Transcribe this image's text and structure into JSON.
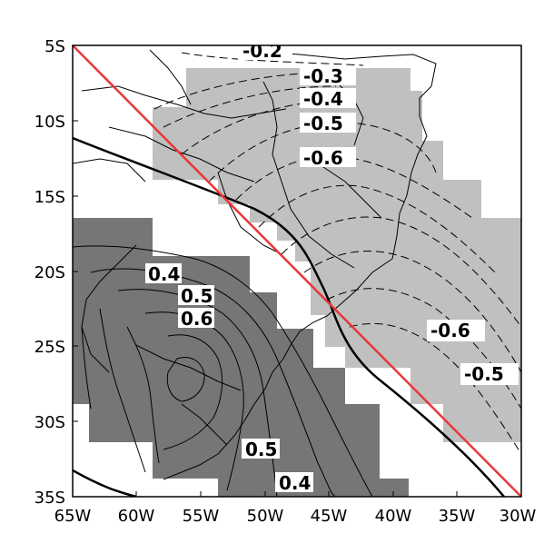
{
  "map": {
    "y_axis_labels": [
      "5S",
      "10S",
      "15S",
      "20S",
      "25S",
      "30S",
      "35S"
    ],
    "x_axis_labels": [
      "65W",
      "60W",
      "55W",
      "50W",
      "45W",
      "40W",
      "35W",
      "30W"
    ],
    "contour_labels": {
      "neg_02": "-0.2",
      "neg_03": "-0.3",
      "neg_04": "-0.4",
      "neg_05_top": "-0.5",
      "neg_06_top": "-0.6",
      "neg_06_right": "-0.6",
      "neg_05_right": "-0.5",
      "pos_04_top": "0.4",
      "pos_05_top": "0.5",
      "pos_06": "0.6",
      "pos_05_bottom": "0.5",
      "pos_04_bottom": "0.4"
    },
    "colors": {
      "positive_shading": "#767676",
      "negative_shading": "#c0c0c0",
      "reference_line": "#e8373a",
      "zero_contour": "#000000"
    }
  }
}
